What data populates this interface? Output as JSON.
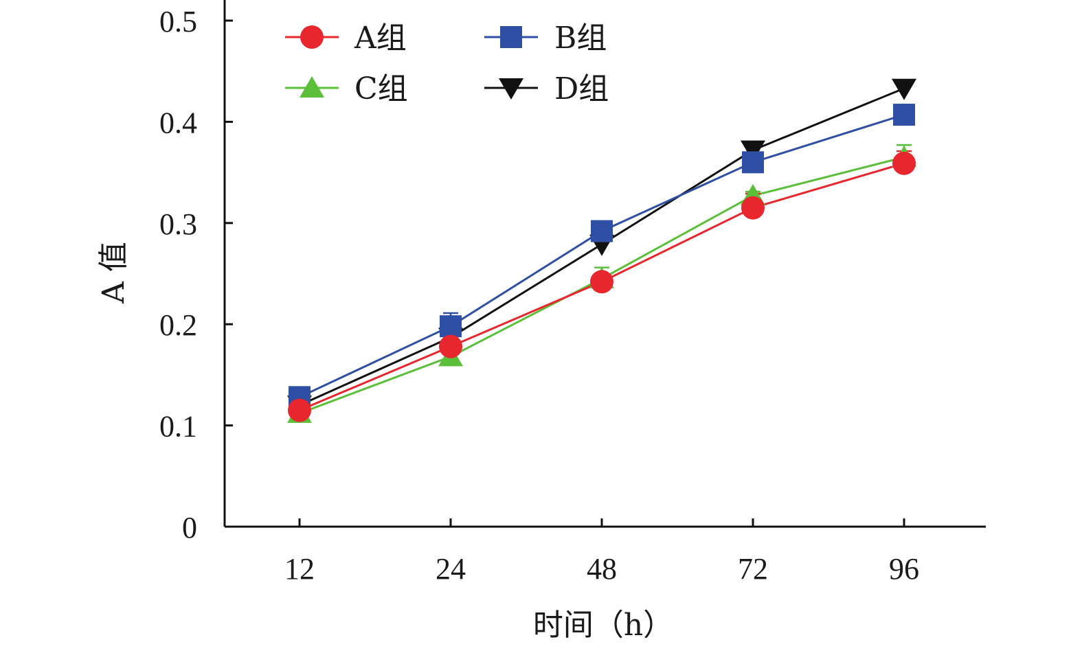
{
  "chart_data": {
    "type": "line",
    "title": "",
    "xlabel": "时间（h）",
    "ylabel": "A 值",
    "categories": [
      "12",
      "24",
      "48",
      "72",
      "96"
    ],
    "ylim": [
      0,
      0.5
    ],
    "yticks": [
      0,
      0.1,
      0.2,
      0.3,
      0.4,
      0.5
    ],
    "ytick_labels": [
      "0",
      "0.1",
      "0.2",
      "0.3",
      "0.4",
      "0.5"
    ],
    "grid": false,
    "legend_position": "top-left",
    "error_bars": true,
    "series": [
      {
        "name": "A组",
        "color": "#e8262d",
        "marker": "circle",
        "values": [
          0.115,
          0.178,
          0.242,
          0.315,
          0.359
        ],
        "errors": [
          0.004,
          0.006,
          0.007,
          0.014,
          0.012
        ]
      },
      {
        "name": "B组",
        "color": "#2e4fa3",
        "marker": "square",
        "values": [
          0.128,
          0.198,
          0.292,
          0.36,
          0.407
        ],
        "errors": [
          0.005,
          0.013,
          0.007,
          0.006,
          0.01
        ]
      },
      {
        "name": "C组",
        "color": "#5bbf3a",
        "marker": "triangle-up",
        "values": [
          0.112,
          0.168,
          0.245,
          0.327,
          0.365
        ],
        "errors": [
          0.005,
          0.006,
          0.011,
          0.004,
          0.012
        ]
      },
      {
        "name": "D组",
        "color": "#111111",
        "marker": "triangle-down",
        "values": [
          0.12,
          0.187,
          0.279,
          0.372,
          0.433
        ],
        "errors": [
          0.004,
          0.006,
          0.007,
          0.006,
          0.004
        ]
      }
    ]
  }
}
